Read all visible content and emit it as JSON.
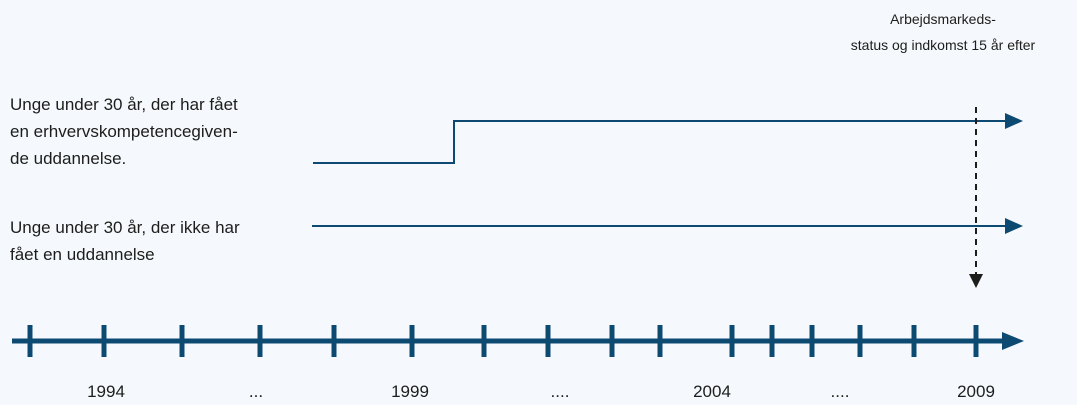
{
  "outcome_label": [
    "Arbejdsmarkeds-",
    "status og indkomst 15 år efter"
  ],
  "group1_label": [
    "Unge under 30 år, der har fået",
    "en  erhvervskompetencegiven-",
    "de uddannelse."
  ],
  "group2_label": [
    "Unge under 30 år, der ikke har",
    "fået en uddannelse"
  ],
  "timeline_labels": [
    "1994",
    "...",
    "1999",
    "....",
    "2004",
    "....",
    "2009"
  ],
  "colors": {
    "line": "#0d4a72",
    "arrow_dashed": "#1d1d1b",
    "background": "#f5f9fd"
  }
}
